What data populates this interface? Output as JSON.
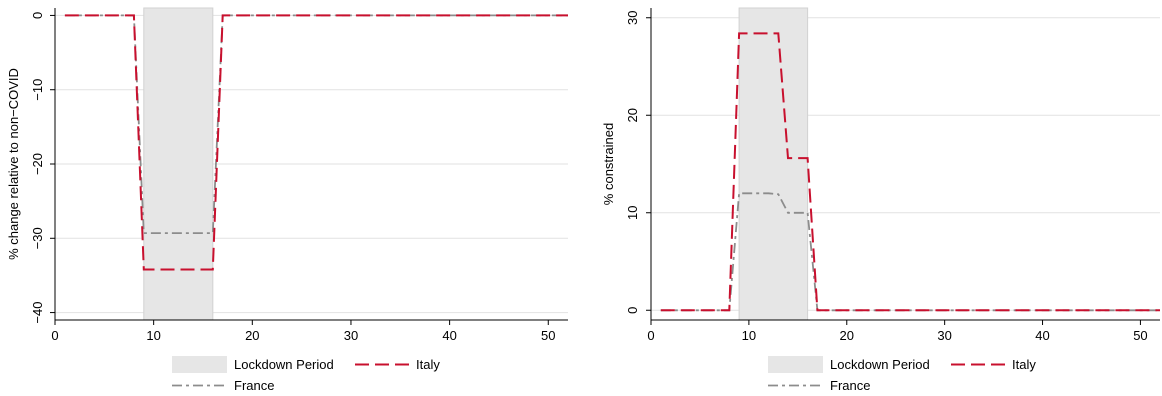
{
  "chart_data": [
    {
      "type": "line",
      "title": "",
      "xlabel": "",
      "ylabel": "% change relative to non−COVID",
      "xlim": [
        0,
        52
      ],
      "ylim": [
        -41,
        1
      ],
      "x_ticks": [
        0,
        10,
        20,
        30,
        40,
        50
      ],
      "x_tick_labels": [
        "0",
        "10",
        "20",
        "30",
        "40",
        "50"
      ],
      "y_ticks": [
        0,
        -10,
        -20,
        -30,
        -40
      ],
      "y_tick_labels": [
        "0",
        "−10",
        "−20",
        "−30",
        "−40"
      ],
      "grid": "horizontal",
      "shaded_region": {
        "name": "Lockdown Period",
        "x": [
          9,
          16
        ]
      },
      "series": [
        {
          "name": "Italy",
          "x": [
            1,
            8,
            9,
            16,
            17,
            52
          ],
          "y": [
            0,
            0,
            -34.2,
            -34.2,
            0,
            0
          ]
        },
        {
          "name": "France",
          "x": [
            1,
            8,
            9,
            16,
            17,
            52
          ],
          "y": [
            0,
            0,
            -29.3,
            -29.3,
            0,
            0
          ]
        }
      ],
      "legend_position": "bottom"
    },
    {
      "type": "line",
      "title": "",
      "xlabel": "",
      "ylabel": "% constrained",
      "xlim": [
        0,
        52
      ],
      "ylim": [
        -1,
        31
      ],
      "x_ticks": [
        0,
        10,
        20,
        30,
        40,
        50
      ],
      "x_tick_labels": [
        "0",
        "10",
        "20",
        "30",
        "40",
        "50"
      ],
      "y_ticks": [
        0,
        10,
        20,
        30
      ],
      "y_tick_labels": [
        "0",
        "10",
        "20",
        "30"
      ],
      "grid": "horizontal",
      "shaded_region": {
        "name": "Lockdown Period",
        "x": [
          9,
          16
        ]
      },
      "series": [
        {
          "name": "Italy",
          "x": [
            1,
            8,
            9,
            13,
            14,
            15,
            16,
            17,
            52
          ],
          "y": [
            0,
            0,
            28.4,
            28.4,
            15.6,
            15.6,
            15.6,
            0,
            0
          ]
        },
        {
          "name": "France",
          "x": [
            1,
            8,
            9,
            12,
            13,
            14,
            15,
            16,
            17,
            52
          ],
          "y": [
            0,
            0,
            12,
            12,
            11.9,
            10,
            10,
            10,
            0,
            0
          ]
        }
      ],
      "legend_position": "bottom"
    }
  ],
  "colors": {
    "italy": "#c8102e",
    "france": "#8c8c8c",
    "lockdown_fill": "#e6e6e6",
    "grid": "#e2e2e2"
  }
}
